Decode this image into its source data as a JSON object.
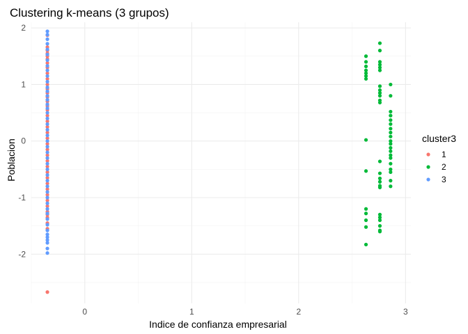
{
  "chart_data": {
    "type": "scatter",
    "title": "Clustering k-means (3 grupos)",
    "xlabel": "Indice de confianza empresarial",
    "ylabel": "Poblacion",
    "xlim": [
      -0.5,
      3.05
    ],
    "ylim": [
      -2.87,
      2.1
    ],
    "xticks": [
      0,
      1,
      2,
      3
    ],
    "yticks": [
      -2,
      -1,
      0,
      1,
      2
    ],
    "grid": true,
    "legend": {
      "title": "cluster3",
      "position": "right"
    },
    "series": [
      {
        "name": "1",
        "color": "#F8766D",
        "x": [
          -0.35,
          -0.35,
          -0.35,
          -0.35,
          -0.35,
          -0.35,
          -0.35,
          -0.35,
          -0.35,
          -0.35,
          -0.35,
          -0.35,
          -0.35,
          -0.35,
          -0.35,
          -0.35,
          -0.35,
          -0.35,
          -0.35,
          -0.35,
          -0.35,
          -0.35,
          -0.35,
          -0.35,
          -0.35,
          -0.35,
          -0.35,
          -0.35,
          -0.35,
          -0.35,
          -0.35,
          -0.35,
          -0.35,
          -0.35,
          -0.35,
          -0.35,
          -0.35,
          -0.35,
          -0.35,
          -0.35
        ],
        "y": [
          1.87,
          1.66,
          1.6,
          1.55,
          1.5,
          1.45,
          1.38,
          1.3,
          1.2,
          1.1,
          1.0,
          0.92,
          0.85,
          0.78,
          0.7,
          0.62,
          0.55,
          0.45,
          0.35,
          0.25,
          0.15,
          0.05,
          -0.05,
          -0.15,
          -0.25,
          -0.35,
          -0.45,
          -0.55,
          -0.65,
          -0.75,
          -0.85,
          -0.95,
          -1.05,
          -1.15,
          -1.25,
          -1.3,
          -1.35,
          -1.45,
          -1.55,
          -2.67
        ]
      },
      {
        "name": "2",
        "color": "#00BA38",
        "x": [
          2.63,
          2.63,
          2.63,
          2.63,
          2.63,
          2.63,
          2.63,
          2.63,
          2.63,
          2.63,
          2.63,
          2.63,
          2.63,
          2.63,
          2.76,
          2.76,
          2.76,
          2.76,
          2.76,
          2.76,
          2.76,
          2.76,
          2.76,
          2.76,
          2.76,
          2.76,
          2.76,
          2.76,
          2.76,
          2.76,
          2.76,
          2.76,
          2.76,
          2.76,
          2.76,
          2.76,
          2.76,
          2.76,
          2.86,
          2.86,
          2.86,
          2.86,
          2.86,
          2.86,
          2.86,
          2.86,
          2.86,
          2.86,
          2.86,
          2.86,
          2.86,
          2.86,
          2.86,
          2.86,
          2.86,
          2.86,
          2.86,
          2.86
        ],
        "y": [
          1.5,
          1.4,
          1.32,
          1.25,
          1.2,
          1.15,
          1.1,
          0.02,
          -0.53,
          -1.2,
          -1.28,
          -1.4,
          -1.52,
          -1.83,
          1.73,
          1.6,
          1.4,
          1.35,
          1.3,
          1.25,
          0.97,
          0.9,
          0.85,
          0.8,
          0.72,
          0.68,
          -0.36,
          -0.57,
          -0.66,
          -0.72,
          -0.79,
          -0.82,
          -1.3,
          -1.35,
          -1.4,
          -1.5,
          -1.58,
          -1.6,
          1.0,
          0.8,
          0.52,
          0.45,
          0.37,
          0.3,
          0.22,
          0.15,
          0.08,
          0.0,
          -0.05,
          -0.12,
          -0.18,
          -0.25,
          -0.3,
          -0.4,
          -0.5,
          -0.55,
          -0.7,
          -0.8
        ]
      },
      {
        "name": "3",
        "color": "#619CFF",
        "x": [
          -0.35,
          -0.35,
          -0.35,
          -0.35,
          -0.35,
          -0.35,
          -0.35,
          -0.35,
          -0.35,
          -0.35,
          -0.35,
          -0.35,
          -0.35,
          -0.35,
          -0.35,
          -0.35,
          -0.35,
          -0.35,
          -0.35,
          -0.35,
          -0.35,
          -0.35,
          -0.35,
          -0.35,
          -0.35,
          -0.35,
          -0.35,
          -0.35,
          -0.35,
          -0.35,
          -0.35,
          -0.35,
          -0.35,
          -0.35,
          -0.35,
          -0.35,
          -0.35,
          -0.35,
          -0.35,
          -0.35,
          -0.35,
          -0.35,
          -0.35,
          -0.35,
          -0.35
        ],
        "y": [
          1.94,
          1.88,
          1.8,
          1.72,
          1.62,
          1.53,
          1.43,
          1.33,
          1.25,
          1.15,
          1.05,
          0.95,
          0.88,
          0.8,
          0.73,
          0.65,
          0.58,
          0.5,
          0.4,
          0.3,
          0.2,
          0.1,
          0.0,
          -0.1,
          -0.2,
          -0.3,
          -0.4,
          -0.5,
          -0.6,
          -0.7,
          -0.8,
          -0.9,
          -1.0,
          -1.1,
          -1.2,
          -1.28,
          -1.38,
          -1.48,
          -1.58,
          -1.65,
          -1.7,
          -1.75,
          -1.8,
          -1.9,
          -1.98
        ]
      }
    ]
  }
}
